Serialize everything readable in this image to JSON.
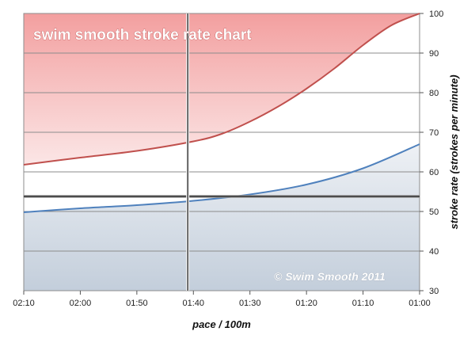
{
  "chart_data": {
    "type": "area",
    "title": "swim smooth stroke rate chart",
    "annotation": "© Swim Smooth 2011",
    "xlabel": "pace / 100m",
    "ylabel": "stroke rate (strokes per minute)",
    "x_ticks": [
      "02:10",
      "02:00",
      "01:50",
      "01:40",
      "01:30",
      "01:20",
      "01:10",
      "01:00"
    ],
    "x_seconds": [
      130,
      120,
      110,
      100,
      90,
      80,
      70,
      60
    ],
    "y_ticks": [
      30,
      40,
      50,
      60,
      70,
      80,
      90,
      100
    ],
    "ylim": [
      30,
      100
    ],
    "xlim_seconds": [
      130,
      60
    ],
    "grid": true,
    "colors": {
      "upper_line": "#c0504d",
      "upper_fill": "#f4b3b3",
      "lower_line": "#4f81bd",
      "lower_fill": "#c9d3de",
      "grid": "#8c8c8c",
      "reference": "#333333"
    },
    "series": [
      {
        "x": [
          "02:10",
          "02:00",
          "01:50",
          "01:40",
          "01:35",
          "01:30",
          "01:25",
          "01:20",
          "01:15",
          "01:10",
          "01:05",
          "01:00"
        ],
        "x_seconds": [
          130,
          120,
          110,
          100,
          95,
          90,
          85,
          80,
          75,
          70,
          65,
          60
        ],
        "values": [
          61.8,
          63.6,
          65.3,
          67.7,
          69.6,
          72.7,
          76.5,
          81.0,
          86.2,
          92.0,
          97.0,
          100.0
        ]
      },
      {
        "x": [
          "02:10",
          "02:00",
          "01:50",
          "01:40",
          "01:30",
          "01:20",
          "01:10",
          "01:00"
        ],
        "x_seconds": [
          130,
          120,
          110,
          100,
          90,
          80,
          70,
          60
        ],
        "values": [
          49.8,
          50.8,
          51.6,
          52.7,
          54.3,
          56.8,
          60.9,
          67.0
        ]
      }
    ],
    "reference_lines": {
      "horizontal_y": 53.8,
      "vertical_x": "01:41",
      "vertical_x_seconds": 101
    }
  }
}
